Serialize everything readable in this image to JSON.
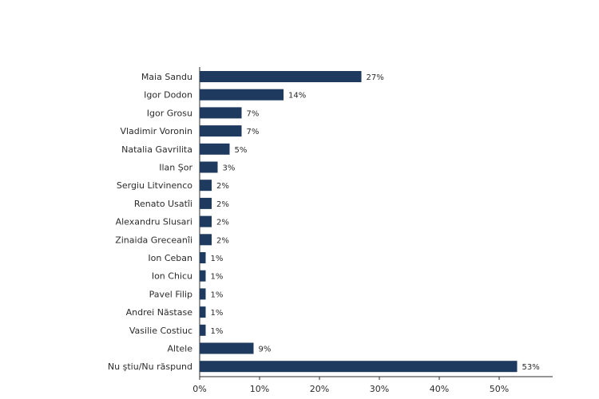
{
  "chart_data": {
    "type": "bar",
    "orientation": "horizontal",
    "categories": [
      "Maia Sandu",
      "Igor Dodon",
      "Igor Grosu",
      "Vladimir Voronin",
      "Natalia Gavrilita",
      "Ilan Şor",
      "Sergiu Litvinenco",
      "Renato Usatîi",
      "Alexandru Slusari",
      "Zinaida Greceanîi",
      "Ion Ceban",
      "Ion Chicu",
      "Pavel Filip",
      "Andrei Năstase",
      "Vasilie Costiuc",
      "Altele",
      "Nu ştiu/Nu răspund"
    ],
    "values": [
      27,
      14,
      7,
      7,
      5,
      3,
      2,
      2,
      2,
      2,
      1,
      1,
      1,
      1,
      1,
      9,
      53
    ],
    "value_labels": [
      "27%",
      "14%",
      "7%",
      "7%",
      "5%",
      "3%",
      "2%",
      "2%",
      "2%",
      "2%",
      "1%",
      "1%",
      "1%",
      "1%",
      "1%",
      "9%",
      "53%"
    ],
    "xlim": [
      0,
      60
    ],
    "x_ticks": [
      "0%",
      "10%",
      "20%",
      "30%",
      "40%",
      "50%"
    ],
    "x_tick_values": [
      0,
      10,
      20,
      30,
      40,
      50
    ],
    "grid": false,
    "bar_color": "#1f3a5f"
  }
}
